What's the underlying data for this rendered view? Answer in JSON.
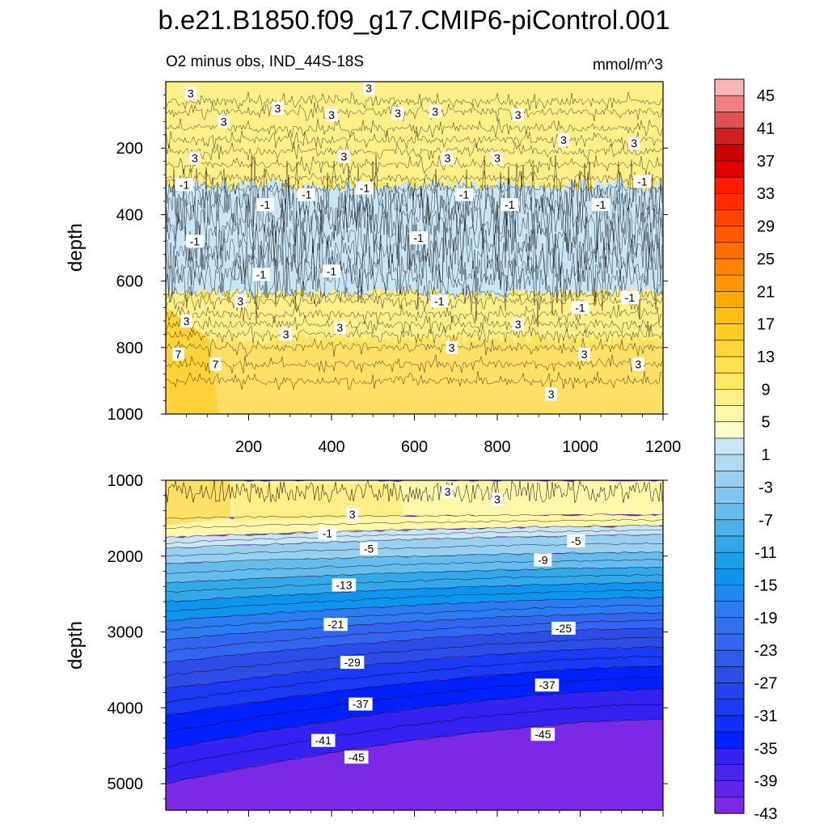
{
  "title": "b.e21.B1850.f09_g17.CMIP6-piControl.001",
  "subtitle_left": "O2 minus obs, IND_44S-18S",
  "subtitle_right": "mmol/m^3",
  "chart_data": [
    {
      "type": "heatmap",
      "panel": "upper",
      "xlabel": "",
      "ylabel": "depth",
      "xlim": [
        0,
        1200
      ],
      "ylim": [
        1000,
        0
      ],
      "x_ticks": [
        "200",
        "400",
        "600",
        "800",
        "1000",
        "1200"
      ],
      "y_ticks": [
        "200",
        "400",
        "600",
        "800",
        "1000"
      ],
      "x_tick_values": [
        200,
        400,
        600,
        800,
        1000,
        1200
      ],
      "y_tick_values": [
        200,
        400,
        600,
        800,
        1000
      ],
      "depth_bands": [
        {
          "from": 0,
          "to": 310,
          "value": 3
        },
        {
          "from": 310,
          "to": 640,
          "value": -1
        },
        {
          "from": 640,
          "to": 780,
          "value": 3
        },
        {
          "from": 780,
          "to": 1000,
          "value": 5
        }
      ],
      "contour_labels": [
        {
          "text": "3",
          "x": 60,
          "y": 35
        },
        {
          "text": "3",
          "x": 140,
          "y": 120
        },
        {
          "text": "3",
          "x": 270,
          "y": 80
        },
        {
          "text": "3",
          "x": 400,
          "y": 100
        },
        {
          "text": "3",
          "x": 490,
          "y": 20
        },
        {
          "text": "3",
          "x": 560,
          "y": 95
        },
        {
          "text": "3",
          "x": 650,
          "y": 90
        },
        {
          "text": "3",
          "x": 850,
          "y": 100
        },
        {
          "text": "3",
          "x": 960,
          "y": 175
        },
        {
          "text": "3",
          "x": 1130,
          "y": 185
        },
        {
          "text": "3",
          "x": 70,
          "y": 230
        },
        {
          "text": "3",
          "x": 430,
          "y": 225
        },
        {
          "text": "3",
          "x": 680,
          "y": 230
        },
        {
          "text": "3",
          "x": 800,
          "y": 230
        },
        {
          "text": "-1",
          "x": 45,
          "y": 310
        },
        {
          "text": "-1",
          "x": 240,
          "y": 370
        },
        {
          "text": "-1",
          "x": 340,
          "y": 340
        },
        {
          "text": "-1",
          "x": 480,
          "y": 320
        },
        {
          "text": "-1",
          "x": 610,
          "y": 470
        },
        {
          "text": "-1",
          "x": 720,
          "y": 340
        },
        {
          "text": "-1",
          "x": 830,
          "y": 370
        },
        {
          "text": "-1",
          "x": 1050,
          "y": 370
        },
        {
          "text": "-1",
          "x": 1150,
          "y": 300
        },
        {
          "text": "-1",
          "x": 70,
          "y": 480
        },
        {
          "text": "-1",
          "x": 230,
          "y": 580
        },
        {
          "text": "-1",
          "x": 400,
          "y": 570
        },
        {
          "text": "-1",
          "x": 660,
          "y": 660
        },
        {
          "text": "-1",
          "x": 1000,
          "y": 680
        },
        {
          "text": "-1",
          "x": 1120,
          "y": 650
        },
        {
          "text": "3",
          "x": 180,
          "y": 660
        },
        {
          "text": "3",
          "x": 290,
          "y": 760
        },
        {
          "text": "3",
          "x": 420,
          "y": 740
        },
        {
          "text": "3",
          "x": 690,
          "y": 800
        },
        {
          "text": "3",
          "x": 850,
          "y": 730
        },
        {
          "text": "3",
          "x": 1010,
          "y": 820
        },
        {
          "text": "3",
          "x": 1140,
          "y": 850
        },
        {
          "text": "3",
          "x": 930,
          "y": 940
        },
        {
          "text": "7",
          "x": 30,
          "y": 820
        },
        {
          "text": "7",
          "x": 120,
          "y": 850
        },
        {
          "text": "3",
          "x": 50,
          "y": 720
        }
      ]
    },
    {
      "type": "heatmap",
      "panel": "lower",
      "xlabel": "",
      "ylabel": "depth",
      "xlim": [
        0,
        1200
      ],
      "ylim": [
        5350,
        1000
      ],
      "y_ticks": [
        "1000",
        "2000",
        "3000",
        "4000",
        "5000"
      ],
      "y_tick_values": [
        1000,
        2000,
        3000,
        4000,
        5000
      ],
      "contour_levels_depth": [
        {
          "value": 3,
          "left": 1500,
          "right": 1450
        },
        {
          "value": 1,
          "left": 1750,
          "right": 1600
        },
        {
          "value": -3,
          "left": 1900,
          "right": 1720
        },
        {
          "value": -7,
          "left": 2100,
          "right": 1950
        },
        {
          "value": -11,
          "left": 2350,
          "right": 2150
        },
        {
          "value": -15,
          "left": 2600,
          "right": 2350
        },
        {
          "value": -19,
          "left": 2850,
          "right": 2550
        },
        {
          "value": -23,
          "left": 3100,
          "right": 2750
        },
        {
          "value": -27,
          "left": 3400,
          "right": 2950
        },
        {
          "value": -31,
          "left": 3750,
          "right": 3200
        },
        {
          "value": -35,
          "left": 4100,
          "right": 3450
        },
        {
          "value": -39,
          "left": 4550,
          "right": 3750
        },
        {
          "value": -43,
          "left": 5000,
          "right": 4150
        }
      ],
      "contour_labels": [
        {
          "text": "3",
          "x": 680,
          "y": 1150
        },
        {
          "text": "3",
          "x": 800,
          "y": 1250
        },
        {
          "text": "3",
          "x": 450,
          "y": 1450
        },
        {
          "text": "-1",
          "x": 390,
          "y": 1700
        },
        {
          "text": "-5",
          "x": 490,
          "y": 1900
        },
        {
          "text": "-5",
          "x": 990,
          "y": 1800
        },
        {
          "text": "-9",
          "x": 910,
          "y": 2050
        },
        {
          "text": "-13",
          "x": 430,
          "y": 2380
        },
        {
          "text": "-21",
          "x": 410,
          "y": 2900
        },
        {
          "text": "-25",
          "x": 960,
          "y": 2950
        },
        {
          "text": "-29",
          "x": 450,
          "y": 3400
        },
        {
          "text": "-37",
          "x": 920,
          "y": 3700
        },
        {
          "text": "-37",
          "x": 470,
          "y": 3950
        },
        {
          "text": "-41",
          "x": 380,
          "y": 4430
        },
        {
          "text": "-45",
          "x": 460,
          "y": 4650
        },
        {
          "text": "-45",
          "x": 910,
          "y": 4350
        }
      ]
    }
  ],
  "colorbar": {
    "levels": [
      "45",
      "41",
      "37",
      "33",
      "29",
      "25",
      "21",
      "17",
      "13",
      "9",
      "5",
      "1",
      "-3",
      "-7",
      "-11",
      "-15",
      "-19",
      "-23",
      "-27",
      "-31",
      "-35",
      "-39",
      "-43"
    ],
    "colors": [
      "#fbb4b4",
      "#f08080",
      "#e05050",
      "#d02020",
      "#cc0000",
      "#e00000",
      "#ff1a00",
      "#ff2c00",
      "#ff4400",
      "#ff5a00",
      "#ff6e00",
      "#ff8200",
      "#ff9600",
      "#ffaa00",
      "#ffbe10",
      "#ffcc22",
      "#ffd633",
      "#ffe04d",
      "#ffe766",
      "#ffef88",
      "#fff7aa",
      "#ffffcc",
      "#c8e6f5",
      "#b0dcf2",
      "#98d1f0",
      "#80c6ee",
      "#66bcec",
      "#4db2ea",
      "#33a8e8",
      "#1a9ee6",
      "#0d94ec",
      "#1e88ee",
      "#2a7cf0",
      "#3370f0",
      "#3366f0",
      "#2d5ae6",
      "#2d4ee6",
      "#2244ee",
      "#1a3af4",
      "#1030f8",
      "#0020fc",
      "#3322f0",
      "#4a24ec",
      "#6024e8",
      "#7a2ae6"
    ]
  }
}
